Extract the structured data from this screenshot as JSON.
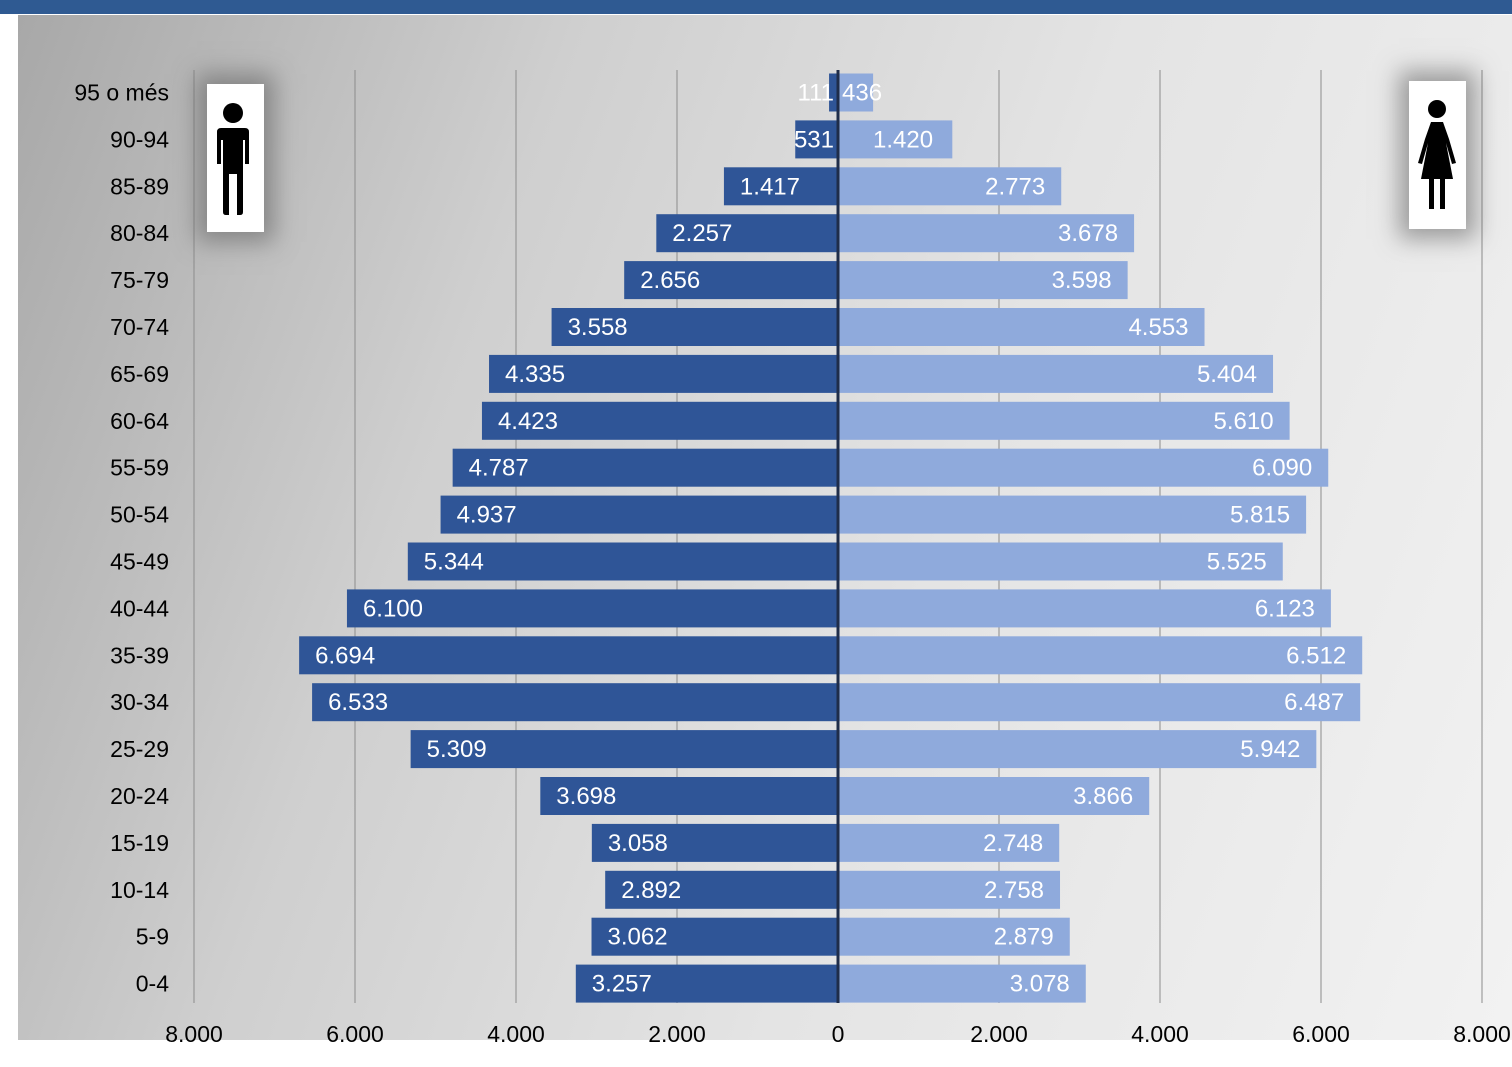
{
  "colors": {
    "male": "#2f5597",
    "female": "#8faadc",
    "axis": "#1f2d4a",
    "grid": "#8c8c8c",
    "header": "#2f5a92"
  },
  "icons": {
    "male": "male-person-icon",
    "female": "female-person-icon"
  },
  "chart_data": {
    "type": "bar",
    "orientation": "horizontal",
    "title": "",
    "categories": [
      "95 o més",
      "90-94",
      "85-89",
      "80-84",
      "75-79",
      "70-74",
      "65-69",
      "60-64",
      "55-59",
      "50-54",
      "45-49",
      "40-44",
      "35-39",
      "30-34",
      "25-29",
      "20-24",
      "15-19",
      "10-14",
      "5-9",
      "0-4"
    ],
    "series": [
      {
        "key": "male",
        "side": "left",
        "values": [
          111,
          531,
          1417,
          2257,
          2656,
          3558,
          4335,
          4423,
          4787,
          4937,
          5344,
          6100,
          6694,
          6533,
          5309,
          3698,
          3058,
          2892,
          3062,
          3257
        ],
        "labels": [
          "111",
          "531",
          "1.417",
          "2.257",
          "2.656",
          "3.558",
          "4.335",
          "4.423",
          "4.787",
          "4.937",
          "5.344",
          "6.100",
          "6.694",
          "6.533",
          "5.309",
          "3.698",
          "3.058",
          "2.892",
          "3.062",
          "3.257"
        ]
      },
      {
        "key": "female",
        "side": "right",
        "values": [
          436,
          1420,
          2773,
          3678,
          3598,
          4553,
          5404,
          5610,
          6090,
          5815,
          5525,
          6123,
          6512,
          6487,
          5942,
          3866,
          2748,
          2758,
          2879,
          3078
        ],
        "labels": [
          "436",
          "1.420",
          "2.773",
          "3.678",
          "3.598",
          "4.553",
          "5.404",
          "5.610",
          "6.090",
          "5.815",
          "5.525",
          "6.123",
          "6.512",
          "6.487",
          "5.942",
          "3.866",
          "2.748",
          "2.758",
          "2.879",
          "3.078"
        ]
      }
    ],
    "x_ticks": [
      -8000,
      -6000,
      -4000,
      -2000,
      0,
      2000,
      4000,
      6000,
      8000
    ],
    "x_tick_labels": [
      "8.000",
      "6.000",
      "4.000",
      "2.000",
      "0",
      "2.000",
      "4.000",
      "6.000",
      "8.000"
    ],
    "xlim": [
      -8000,
      8000
    ],
    "grid": true,
    "legend": false
  }
}
